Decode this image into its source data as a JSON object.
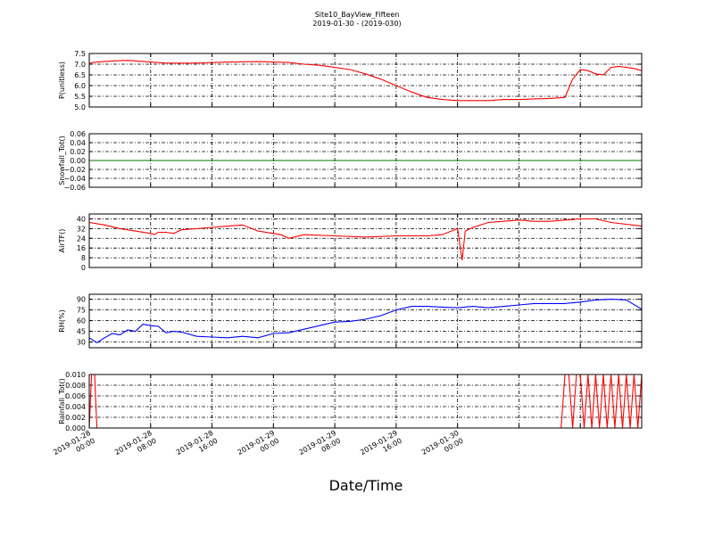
{
  "title": "Site10_BayView_Fifteen",
  "subtitle": "2019-01-30 - (2019-030)",
  "xlabel": "Date/Time",
  "x_ticks": [
    {
      "line1": "2019-01-28",
      "line2": "00:00"
    },
    {
      "line1": "2019-01-28",
      "line2": "08:00"
    },
    {
      "line1": "2019-01-28",
      "line2": "16:00"
    },
    {
      "line1": "2019-01-29",
      "line2": "00:00"
    },
    {
      "line1": "2019-01-29",
      "line2": "08:00"
    },
    {
      "line1": "2019-01-29",
      "line2": "16:00"
    },
    {
      "line1": "2019-01-30",
      "line2": "00:00"
    }
  ],
  "chart_data": [
    {
      "type": "line",
      "ylabel": "P(unitless)",
      "ylim": [
        5.0,
        7.5
      ],
      "yticks": [
        "5.0",
        "5.5",
        "6.0",
        "6.5",
        "7.0",
        "7.5"
      ],
      "grid": true,
      "color": "#ff0000",
      "x_hours": [
        0,
        1,
        3,
        5,
        8,
        10,
        14,
        18,
        22,
        26,
        28,
        30,
        32,
        34,
        36,
        38,
        40,
        42,
        44,
        46,
        48,
        50,
        52,
        54,
        56,
        58,
        60,
        61,
        62,
        63,
        64,
        65,
        66,
        67,
        68,
        69,
        70,
        71,
        72
      ],
      "values": [
        7.05,
        7.1,
        7.15,
        7.18,
        7.1,
        7.05,
        7.05,
        7.1,
        7.12,
        7.08,
        7.0,
        6.95,
        6.85,
        6.75,
        6.55,
        6.3,
        6.0,
        5.7,
        5.45,
        5.35,
        5.3,
        5.3,
        5.3,
        5.35,
        5.35,
        5.38,
        5.4,
        5.42,
        5.45,
        6.3,
        6.75,
        6.7,
        6.55,
        6.5,
        6.85,
        6.9,
        6.85,
        6.8,
        6.7
      ]
    },
    {
      "type": "line",
      "ylabel": "Snowfall_Tot()",
      "ylim": [
        -0.06,
        0.06
      ],
      "yticks": [
        "−0.06",
        "−0.04",
        "−0.02",
        "0.00",
        "0.02",
        "0.04",
        "0.06"
      ],
      "grid": true,
      "color": "#008000",
      "x_hours": [
        0,
        72
      ],
      "values": [
        0.0,
        0.0
      ]
    },
    {
      "type": "line",
      "ylabel": "AirTF()",
      "ylim": [
        0,
        44
      ],
      "yticks": [
        "0",
        "8",
        "16",
        "24",
        "32",
        "40"
      ],
      "grid": true,
      "color": "#ff0000",
      "x_hours": [
        0,
        2,
        4,
        6,
        8,
        8.5,
        9,
        10,
        11,
        12,
        14,
        16,
        18,
        20,
        22,
        24,
        25,
        26,
        28,
        32,
        36,
        40,
        44,
        46,
        47.6,
        48,
        48.6,
        49,
        50,
        52,
        54,
        56,
        58,
        60,
        62,
        64,
        66,
        68,
        72
      ],
      "values": [
        37,
        35,
        32,
        30,
        28,
        27,
        29,
        29,
        28,
        31,
        32,
        33,
        34,
        35,
        30,
        28,
        27,
        24,
        27,
        26,
        25,
        26,
        26,
        27,
        31,
        32,
        6,
        30,
        33,
        37,
        38,
        39,
        38,
        38,
        39,
        40,
        40,
        37,
        34
      ]
    },
    {
      "type": "line",
      "ylabel": "RH(%)",
      "ylim": [
        22,
        97
      ],
      "yticks": [
        "30",
        "45",
        "60",
        "75",
        "90"
      ],
      "grid": true,
      "color": "#0000ff",
      "x_hours": [
        0,
        1,
        2,
        3,
        4,
        5,
        6,
        7,
        8,
        9,
        10,
        11,
        12,
        14,
        16,
        18,
        20,
        22,
        24,
        26,
        28,
        30,
        32,
        34,
        36,
        38,
        40,
        42,
        44,
        46,
        48,
        50,
        52,
        54,
        56,
        58,
        60,
        62,
        64,
        66,
        68,
        70,
        72
      ],
      "values": [
        36,
        29,
        36,
        42,
        40,
        47,
        45,
        55,
        53,
        52,
        43,
        45,
        44,
        38,
        37,
        36,
        38,
        36,
        42,
        43,
        48,
        53,
        58,
        59,
        62,
        67,
        75,
        80,
        80,
        79,
        78,
        80,
        78,
        80,
        82,
        84,
        84,
        84,
        86,
        89,
        90,
        89,
        76
      ]
    },
    {
      "type": "line",
      "ylabel": "Rainfall_Tot()",
      "ylim": [
        0.0,
        0.01
      ],
      "yticks": [
        "0.000",
        "0.002",
        "0.004",
        "0.006",
        "0.008",
        "0.010"
      ],
      "grid": true,
      "color": "#ff0000",
      "x_hours": [
        0,
        0.3,
        0.7,
        1.0,
        1.3,
        61.5,
        62.0,
        62.5,
        63.0,
        63.5,
        64.0,
        64.5,
        65.0,
        65.5,
        66.0,
        66.5,
        67.0,
        67.5,
        68.0,
        68.5,
        69.0,
        69.5,
        70.0,
        70.5,
        71.0,
        71.5,
        72
      ],
      "values": [
        0,
        0.01,
        0.01,
        0,
        0,
        0,
        0.01,
        0.01,
        0,
        0.01,
        0.01,
        0,
        0.01,
        0,
        0.01,
        0,
        0.01,
        0,
        0.01,
        0,
        0.01,
        0,
        0.01,
        0,
        0.01,
        0,
        0.01
      ]
    }
  ]
}
